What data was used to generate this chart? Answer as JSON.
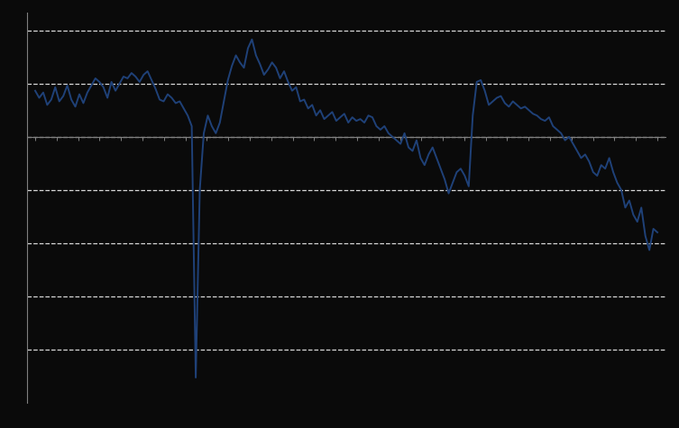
{
  "background_color": "#0a0a0a",
  "line_color": "#1f4178",
  "line_width": 1.4,
  "grid_color": "#ffffff",
  "grid_alpha": 0.85,
  "axis_color": "#808080",
  "ylim": [
    -750,
    350
  ],
  "ytick_positions": [
    -600,
    -450,
    -300,
    -150,
    0,
    150,
    300
  ],
  "values": [
    130,
    110,
    125,
    90,
    105,
    140,
    100,
    115,
    145,
    105,
    85,
    120,
    95,
    125,
    145,
    165,
    155,
    140,
    110,
    155,
    130,
    150,
    170,
    165,
    180,
    170,
    155,
    175,
    185,
    160,
    135,
    105,
    100,
    120,
    110,
    95,
    100,
    80,
    60,
    30,
    -680,
    -150,
    10,
    60,
    30,
    10,
    40,
    100,
    160,
    200,
    230,
    210,
    195,
    250,
    275,
    230,
    205,
    175,
    190,
    210,
    195,
    165,
    185,
    155,
    130,
    140,
    100,
    105,
    80,
    90,
    60,
    75,
    50,
    60,
    70,
    45,
    55,
    65,
    40,
    55,
    45,
    50,
    40,
    60,
    55,
    30,
    20,
    30,
    10,
    0,
    -10,
    -20,
    10,
    -30,
    -40,
    -10,
    -60,
    -80,
    -50,
    -30,
    -60,
    -90,
    -120,
    -160,
    -130,
    -100,
    -90,
    -110,
    -140,
    60,
    155,
    160,
    130,
    90,
    100,
    110,
    115,
    95,
    85,
    100,
    90,
    80,
    85,
    75,
    65,
    60,
    50,
    45,
    55,
    30,
    20,
    10,
    -10,
    0,
    -20,
    -40,
    -60,
    -50,
    -70,
    -100,
    -110,
    -80,
    -90,
    -60,
    -100,
    -130,
    -150,
    -200,
    -180,
    -220,
    -240,
    -200,
    -280,
    -320,
    -260,
    -270
  ]
}
